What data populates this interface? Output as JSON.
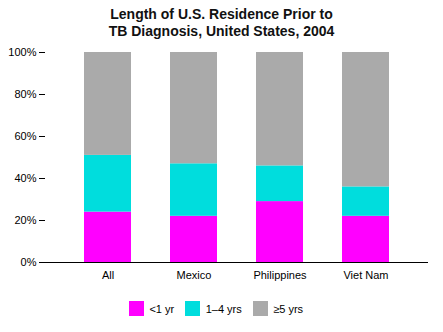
{
  "chart_data": {
    "type": "bar",
    "stacked": true,
    "title": "Length of U.S. Residence Prior to",
    "subtitle": "TB Diagnosis, United States, 2004",
    "categories": [
      "All",
      "Mexico",
      "Philippines",
      "Viet Nam"
    ],
    "series": [
      {
        "name": "<1 yr",
        "color": "#ff00ff",
        "values": [
          24,
          22,
          29,
          22
        ]
      },
      {
        "name": "1–4 yrs",
        "color": "#00dddd",
        "values": [
          27,
          25,
          17,
          14
        ]
      },
      {
        "name": "≥5 yrs",
        "color": "#aaaaaa",
        "values": [
          49,
          53,
          54,
          64
        ]
      }
    ],
    "ylim": [
      0,
      100
    ],
    "yticks": [
      {
        "value": 0,
        "label": "0%"
      },
      {
        "value": 20,
        "label": "20%"
      },
      {
        "value": 40,
        "label": "40%"
      },
      {
        "value": 60,
        "label": "60%"
      },
      {
        "value": 80,
        "label": "80%"
      },
      {
        "value": 100,
        "label": "100%"
      }
    ],
    "grid": false,
    "legend": "bottom"
  }
}
